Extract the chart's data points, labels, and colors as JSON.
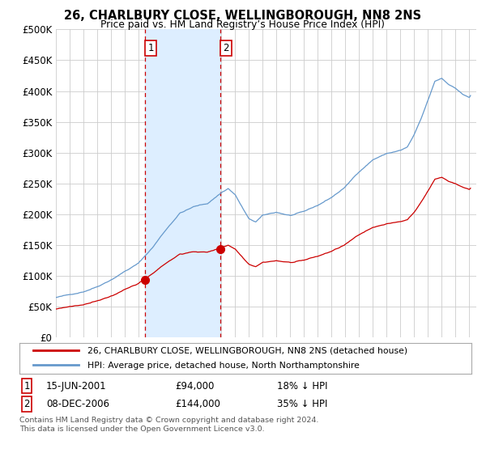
{
  "title": "26, CHARLBURY CLOSE, WELLINGBOROUGH, NN8 2NS",
  "subtitle": "Price paid vs. HM Land Registry’s House Price Index (HPI)",
  "ylabel_ticks": [
    "£0",
    "£50K",
    "£100K",
    "£150K",
    "£200K",
    "£250K",
    "£300K",
    "£350K",
    "£400K",
    "£450K",
    "£500K"
  ],
  "ytick_values": [
    0,
    50000,
    100000,
    150000,
    200000,
    250000,
    300000,
    350000,
    400000,
    450000,
    500000
  ],
  "ylim": [
    0,
    500000
  ],
  "xlim_start": 1995.0,
  "xlim_end": 2025.5,
  "sale1_x": 2001.458,
  "sale1_y": 94000,
  "sale1_label": "1",
  "sale1_date": "15-JUN-2001",
  "sale1_price": "£94,000",
  "sale1_hpi": "18% ↓ HPI",
  "sale2_x": 2006.917,
  "sale2_y": 144000,
  "sale2_label": "2",
  "sale2_date": "08-DEC-2006",
  "sale2_price": "£144,000",
  "sale2_hpi": "35% ↓ HPI",
  "red_line_color": "#cc0000",
  "blue_line_color": "#6699cc",
  "shade_color": "#ddeeff",
  "grid_color": "#cccccc",
  "background_color": "#ffffff",
  "legend_line1": "26, CHARLBURY CLOSE, WELLINGBOROUGH, NN8 2NS (detached house)",
  "legend_line2": "HPI: Average price, detached house, North Northamptonshire",
  "footnote1": "Contains HM Land Registry data © Crown copyright and database right 2024.",
  "footnote2": "This data is licensed under the Open Government Licence v3.0."
}
